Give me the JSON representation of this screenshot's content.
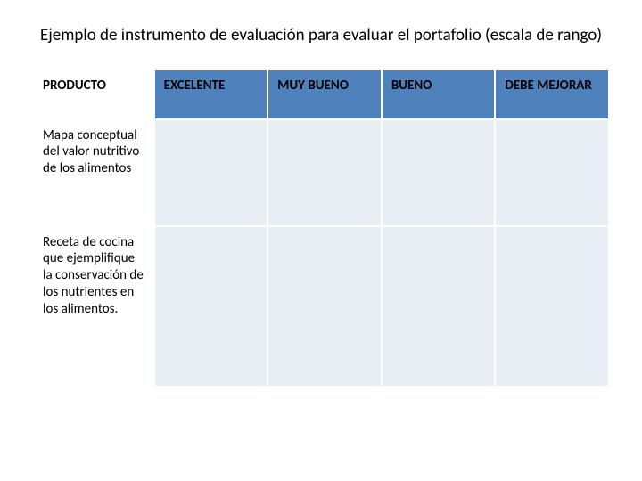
{
  "title": "Ejemplo de instrumento de evaluación para evaluar el portafolio (escala de rango)",
  "table": {
    "columns": [
      "PRODUCTO",
      "EXCELENTE",
      "MUY BUENO",
      "BUENO",
      "DEBE MEJORAR"
    ],
    "rows": [
      [
        "Mapa conceptual del valor nutritivo de los alimentos",
        "",
        "",
        "",
        ""
      ],
      [
        "Receta de cocina que ejemplifique la conservación de los nutrientes en los alimentos.",
        "",
        "",
        "",
        ""
      ]
    ],
    "header_bg": "#4f81bd",
    "header_first_bg": "#ffffff",
    "cell_bg": "#e9edf4",
    "row_label_bg": "#ffffff",
    "border_color": "#ffffff",
    "text_color": "#000000",
    "title_fontsize": 19,
    "cell_fontsize": 15,
    "col_widths_pct": [
      21,
      19.75,
      19.75,
      19.75,
      19.75
    ]
  },
  "background_color": "#ffffff"
}
